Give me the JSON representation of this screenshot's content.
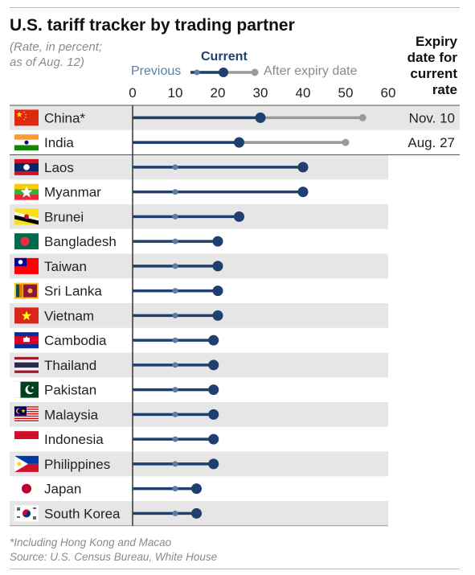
{
  "title": "U.S. tariff tracker by trading partner",
  "subtitle": [
    "(Rate, in percent;",
    "as of Aug. 12)"
  ],
  "expiry_header": [
    "Expiry",
    "date for",
    "current",
    "rate"
  ],
  "legend": {
    "previous": "Previous",
    "current": "Current",
    "after": "After expiry date"
  },
  "footnote": [
    "*Including Hong Kong and Macao",
    "Source: U.S. Census Bureau, White House"
  ],
  "colors": {
    "current": "#1f3f6e",
    "previous": "#5a7fa6",
    "after": "#9a9a9a",
    "band": "#e6e6e6"
  },
  "chart_data": {
    "type": "dot-range",
    "xlim": [
      0,
      60
    ],
    "xticks": [
      "0",
      "10",
      "20",
      "30",
      "40",
      "50",
      "60"
    ],
    "rows": [
      {
        "country": "China*",
        "flag": "china-flag",
        "previous": null,
        "current": 30,
        "after": 54,
        "expiry": "Nov. 10"
      },
      {
        "country": "India",
        "flag": "india-flag",
        "previous": null,
        "current": 25,
        "after": 50,
        "expiry": "Aug. 27"
      },
      {
        "country": "Laos",
        "flag": "laos-flag",
        "previous": 10,
        "current": 40,
        "after": null,
        "expiry": ""
      },
      {
        "country": "Myanmar",
        "flag": "myanmar-flag",
        "previous": 10,
        "current": 40,
        "after": null,
        "expiry": ""
      },
      {
        "country": "Brunei",
        "flag": "brunei-flag",
        "previous": 10,
        "current": 25,
        "after": null,
        "expiry": ""
      },
      {
        "country": "Bangladesh",
        "flag": "bangladesh-flag",
        "previous": 10,
        "current": 20,
        "after": null,
        "expiry": ""
      },
      {
        "country": "Taiwan",
        "flag": "taiwan-flag",
        "previous": 10,
        "current": 20,
        "after": null,
        "expiry": ""
      },
      {
        "country": "Sri Lanka",
        "flag": "sri-lanka-flag",
        "previous": 10,
        "current": 20,
        "after": null,
        "expiry": ""
      },
      {
        "country": "Vietnam",
        "flag": "vietnam-flag",
        "previous": 10,
        "current": 20,
        "after": null,
        "expiry": ""
      },
      {
        "country": "Cambodia",
        "flag": "cambodia-flag",
        "previous": 10,
        "current": 19,
        "after": null,
        "expiry": ""
      },
      {
        "country": "Thailand",
        "flag": "thailand-flag",
        "previous": 10,
        "current": 19,
        "after": null,
        "expiry": ""
      },
      {
        "country": "Pakistan",
        "flag": "pakistan-flag",
        "previous": 10,
        "current": 19,
        "after": null,
        "expiry": ""
      },
      {
        "country": "Malaysia",
        "flag": "malaysia-flag",
        "previous": 10,
        "current": 19,
        "after": null,
        "expiry": ""
      },
      {
        "country": "Indonesia",
        "flag": "indonesia-flag",
        "previous": 10,
        "current": 19,
        "after": null,
        "expiry": ""
      },
      {
        "country": "Philippines",
        "flag": "philippines-flag",
        "previous": 10,
        "current": 19,
        "after": null,
        "expiry": ""
      },
      {
        "country": "Japan",
        "flag": "japan-flag",
        "previous": 10,
        "current": 15,
        "after": null,
        "expiry": ""
      },
      {
        "country": "South Korea",
        "flag": "south-korea-flag",
        "previous": 10,
        "current": 15,
        "after": null,
        "expiry": ""
      }
    ]
  }
}
